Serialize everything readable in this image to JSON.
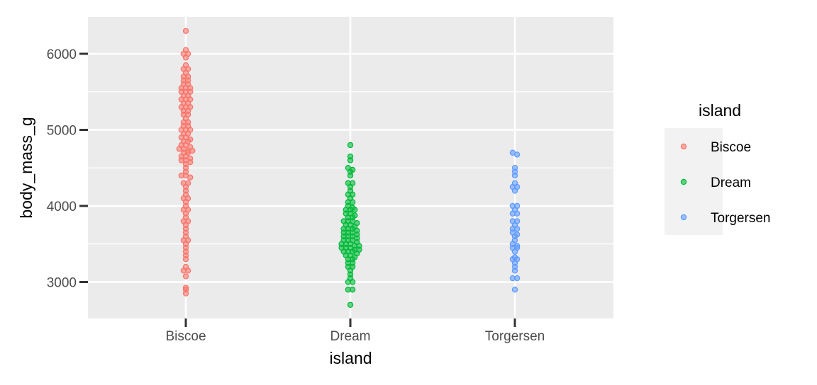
{
  "chart_data": {
    "type": "scatter",
    "subtype": "beeswarm",
    "xlabel": "island",
    "ylabel": "body_mass_g",
    "categories": [
      "Biscoe",
      "Dream",
      "Torgersen"
    ],
    "ylim": [
      2500,
      6500
    ],
    "yticks": [
      3000,
      4000,
      5000,
      6000
    ],
    "grid": true,
    "legend": {
      "title": "island",
      "position": "right"
    },
    "series": [
      {
        "name": "Biscoe",
        "color": "#F8766D",
        "values": [
          6300,
          6050,
          6000,
          6000,
          5950,
          5850,
          5800,
          5800,
          5750,
          5700,
          5700,
          5650,
          5650,
          5600,
          5600,
          5550,
          5550,
          5550,
          5500,
          5500,
          5500,
          5450,
          5450,
          5400,
          5400,
          5400,
          5350,
          5350,
          5300,
          5300,
          5300,
          5250,
          5250,
          5200,
          5200,
          5150,
          5100,
          5100,
          5050,
          5050,
          5000,
          5000,
          5000,
          4950,
          4950,
          4900,
          4900,
          4875,
          4850,
          4850,
          4800,
          4800,
          4775,
          4750,
          4750,
          4725,
          4725,
          4700,
          4700,
          4650,
          4650,
          4625,
          4600,
          4600,
          4575,
          4550,
          4500,
          4450,
          4400,
          4400,
          4375,
          4300,
          4300,
          4250,
          4200,
          4150,
          4100,
          4100,
          4050,
          4000,
          3950,
          3950,
          3900,
          3850,
          3800,
          3800,
          3750,
          3700,
          3650,
          3600,
          3550,
          3550,
          3500,
          3450,
          3400,
          3350,
          3300,
          3200,
          3150,
          3150,
          3075,
          2925,
          2900,
          2850
        ]
      },
      {
        "name": "Dream",
        "color": "#00BA38",
        "values": [
          4800,
          4650,
          4600,
          4500,
          4475,
          4450,
          4400,
          4300,
          4300,
          4250,
          4200,
          4150,
          4150,
          4100,
          4050,
          4050,
          4000,
          3975,
          3950,
          3950,
          3950,
          3900,
          3900,
          3875,
          3850,
          3850,
          3800,
          3800,
          3800,
          3775,
          3750,
          3750,
          3725,
          3700,
          3700,
          3700,
          3675,
          3650,
          3650,
          3650,
          3625,
          3600,
          3600,
          3600,
          3575,
          3550,
          3550,
          3550,
          3525,
          3500,
          3500,
          3500,
          3475,
          3475,
          3450,
          3450,
          3450,
          3425,
          3425,
          3400,
          3400,
          3400,
          3375,
          3350,
          3350,
          3325,
          3300,
          3300,
          3250,
          3250,
          3200,
          3200,
          3150,
          3100,
          3050,
          3000,
          3000,
          2900,
          2900,
          2700
        ]
      },
      {
        "name": "Torgersen",
        "color": "#619CFF",
        "values": [
          4700,
          4675,
          4500,
          4450,
          4400,
          4300,
          4250,
          4250,
          4200,
          4000,
          4000,
          3950,
          3900,
          3900,
          3800,
          3800,
          3750,
          3700,
          3700,
          3650,
          3625,
          3600,
          3550,
          3500,
          3475,
          3450,
          3450,
          3400,
          3325,
          3300,
          3300,
          3250,
          3200,
          3150,
          3050,
          3050,
          2900
        ]
      }
    ]
  }
}
